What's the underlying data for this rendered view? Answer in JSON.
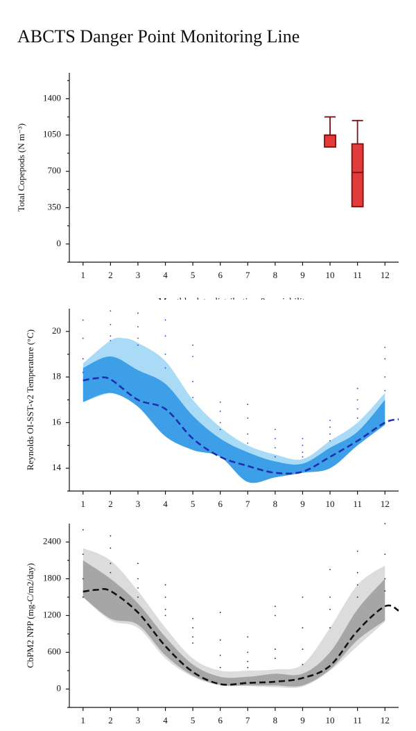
{
  "title": "ABCTS Danger Point Monitoring Line",
  "chart_data": [
    {
      "type": "box",
      "ylabel": "Total Copepods (N m⁻³)",
      "xlabel": "Monthly data distribution & variability",
      "categories": [
        "1",
        "2",
        "3",
        "4",
        "5",
        "6",
        "7",
        "8",
        "9",
        "10",
        "11",
        "12"
      ],
      "ylim": [
        -175,
        1650
      ],
      "yticks": [
        0,
        350,
        700,
        1050,
        1400
      ],
      "yminor": [
        -175,
        175,
        525,
        875,
        1225,
        1575
      ],
      "whisker_high": [
        null,
        null,
        null,
        null,
        null,
        null,
        null,
        null,
        null,
        1225,
        1190,
        null
      ],
      "q3": [
        null,
        null,
        null,
        null,
        null,
        null,
        null,
        null,
        null,
        1050,
        965,
        null
      ],
      "median": [
        null,
        null,
        null,
        null,
        null,
        null,
        null,
        null,
        null,
        1050,
        690,
        null
      ],
      "q1": [
        null,
        null,
        null,
        null,
        null,
        null,
        null,
        null,
        null,
        935,
        360,
        null
      ],
      "whisker_low": [
        null,
        null,
        null,
        null,
        null,
        null,
        null,
        null,
        null,
        935,
        360,
        null
      ],
      "color": "#e23b3b",
      "edge_color": "#7a1010"
    },
    {
      "type": "line",
      "ylabel": "Reynolds OI-SST-v2 Temperature (°C)",
      "xlim": [
        0.5,
        12.5
      ],
      "xticks": [
        1,
        2,
        3,
        4,
        5,
        6,
        7,
        8,
        9,
        10,
        11,
        12
      ],
      "ylim": [
        13,
        21
      ],
      "yticks": [
        14,
        16,
        18,
        20
      ],
      "yminor": [
        13,
        15,
        17,
        19
      ],
      "bands": [
        {
          "color": "#a9dbf7",
          "x": [
            1,
            2,
            2.5,
            3,
            4,
            5,
            6,
            7,
            8,
            9,
            10,
            11,
            12
          ],
          "upper": [
            18.6,
            19.6,
            19.7,
            19.5,
            18.7,
            17.0,
            15.8,
            15.0,
            14.6,
            14.4,
            15.2,
            16.0,
            17.3
          ],
          "lower": [
            16.9,
            17.3,
            17.1,
            16.7,
            15.4,
            14.8,
            14.5,
            13.4,
            13.6,
            13.8,
            14.0,
            15.0,
            15.9
          ]
        },
        {
          "color": "#3d9fe8",
          "x": [
            1,
            2,
            3,
            4,
            5,
            6,
            7,
            8,
            9,
            10,
            11,
            12
          ],
          "upper": [
            18.4,
            18.9,
            18.3,
            17.7,
            16.3,
            15.3,
            14.7,
            14.3,
            14.2,
            14.9,
            15.6,
            17.0
          ],
          "lower": [
            16.9,
            17.3,
            16.7,
            15.4,
            14.8,
            14.5,
            13.4,
            13.6,
            13.8,
            14.0,
            15.0,
            15.9
          ]
        }
      ],
      "points": {
        "color": "#2b35c9",
        "x": [
          1,
          1,
          1,
          1,
          2,
          2,
          2,
          2,
          3,
          3,
          3,
          3,
          4,
          4,
          4,
          4,
          5,
          5,
          5,
          5,
          6,
          6,
          6,
          6,
          7,
          7,
          7,
          7,
          8,
          8,
          8,
          8,
          9,
          9,
          9,
          9,
          10,
          10,
          10,
          10,
          11,
          11,
          11,
          11,
          12,
          12,
          12,
          12
        ],
        "values": [
          20.5,
          19.7,
          18.8,
          18.2,
          20.9,
          20.3,
          19.8,
          19.6,
          20.8,
          20.2,
          19.7,
          19.4,
          20.5,
          19.8,
          19.0,
          18.4,
          19.4,
          18.9,
          17.8,
          17.1,
          16.9,
          16.5,
          16.0,
          15.7,
          16.8,
          16.2,
          15.5,
          15.1,
          15.7,
          15.3,
          14.9,
          14.5,
          15.3,
          15.0,
          14.7,
          14.5,
          16.1,
          15.8,
          15.5,
          15.2,
          17.5,
          17.0,
          16.6,
          16.2,
          19.3,
          18.8,
          18.0,
          17.4
        ]
      },
      "line": {
        "color": "#1f2db0",
        "dashed": true,
        "x": [
          1,
          1.5,
          2,
          3,
          4,
          5,
          6,
          7,
          8,
          9,
          10,
          11,
          12,
          12.5
        ],
        "values": [
          17.85,
          17.95,
          17.9,
          17.0,
          16.6,
          15.3,
          14.5,
          14.1,
          13.8,
          13.85,
          14.5,
          15.2,
          16.0,
          16.15
        ]
      }
    },
    {
      "type": "line",
      "ylabel": "CbPM2 NPP (mg-C/m2/day)",
      "xlim": [
        0.5,
        12.5
      ],
      "xticks": [
        1,
        2,
        3,
        4,
        5,
        6,
        7,
        8,
        9,
        10,
        11,
        12
      ],
      "ylim": [
        -300,
        2700
      ],
      "yticks": [
        0,
        600,
        1200,
        1800,
        2400
      ],
      "yminor": [
        -300,
        300,
        900,
        1500,
        2100
      ],
      "bands": [
        {
          "color": "#dcdcdc",
          "x": [
            1,
            2,
            3,
            4,
            5,
            6,
            7,
            8,
            9,
            10,
            11,
            12
          ],
          "upper": [
            2300,
            2100,
            1600,
            1000,
            500,
            300,
            300,
            320,
            400,
            1000,
            1700,
            2020
          ],
          "lower": [
            1500,
            1120,
            1000,
            500,
            200,
            60,
            50,
            30,
            40,
            300,
            700,
            1100
          ]
        },
        {
          "color": "#a6a6a6",
          "x": [
            1,
            2,
            3,
            4,
            5,
            6,
            7,
            8,
            9,
            10,
            11,
            12
          ],
          "upper": [
            2100,
            1800,
            1400,
            850,
            400,
            200,
            200,
            250,
            250,
            600,
            1300,
            1800
          ],
          "lower": [
            1500,
            1150,
            1050,
            550,
            220,
            70,
            60,
            60,
            60,
            320,
            800,
            1120
          ]
        }
      ],
      "points": {
        "color": "#222222",
        "x": [
          1,
          1,
          1,
          1,
          2,
          2,
          2,
          2,
          3,
          3,
          3,
          3,
          4,
          4,
          4,
          4,
          5,
          5,
          5,
          5,
          6,
          6,
          6,
          6,
          7,
          7,
          7,
          7,
          8,
          8,
          8,
          8,
          9,
          9,
          9,
          9,
          10,
          10,
          10,
          10,
          11,
          11,
          11,
          11,
          12,
          12,
          12,
          12
        ],
        "values": [
          2600,
          2200,
          1800,
          1500,
          2500,
          2300,
          2050,
          1900,
          2050,
          1800,
          1650,
          1500,
          1700,
          1500,
          1300,
          1200,
          1150,
          1000,
          850,
          750,
          1250,
          800,
          550,
          350,
          850,
          600,
          450,
          350,
          1350,
          1200,
          650,
          500,
          1500,
          1000,
          650,
          400,
          1950,
          1500,
          1300,
          1000,
          2250,
          1900,
          1700,
          1500,
          2700,
          2200,
          1800,
          1600
        ]
      },
      "line": {
        "color": "#111111",
        "dashed": true,
        "x": [
          1,
          1.5,
          2,
          3,
          4,
          5,
          6,
          7,
          8,
          9,
          10,
          11,
          12,
          12.5
        ],
        "values": [
          1590,
          1620,
          1600,
          1250,
          700,
          280,
          80,
          100,
          120,
          180,
          380,
          950,
          1350,
          1280
        ]
      }
    }
  ]
}
